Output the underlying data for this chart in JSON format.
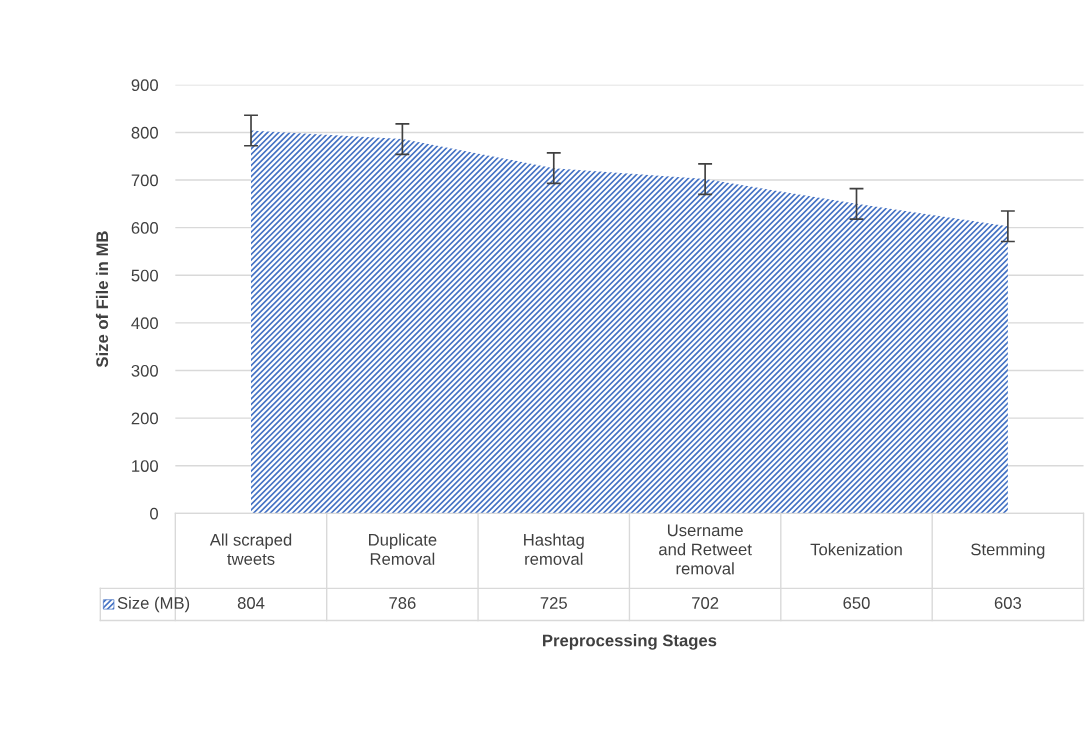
{
  "chart_data": {
    "type": "area",
    "xlabel": "Preprocessing Stages",
    "ylabel": "Size of File in MB",
    "categories": [
      "All scraped tweets",
      "Duplicate Removal",
      "Hashtag removal",
      "Username and Retweet removal",
      "Tokenization",
      "Stemming"
    ],
    "series": [
      {
        "name": "Size (MB)",
        "color": "#4472c4",
        "values": [
          804,
          786,
          725,
          702,
          650,
          603
        ],
        "errors": [
          32,
          32,
          32,
          32,
          32,
          32
        ]
      }
    ],
    "ylim": [
      0,
      900
    ],
    "yticks": [
      0,
      100,
      200,
      300,
      400,
      500,
      600,
      700,
      800,
      900
    ],
    "grid": "y",
    "data_labels": true,
    "legend": "bottom"
  }
}
